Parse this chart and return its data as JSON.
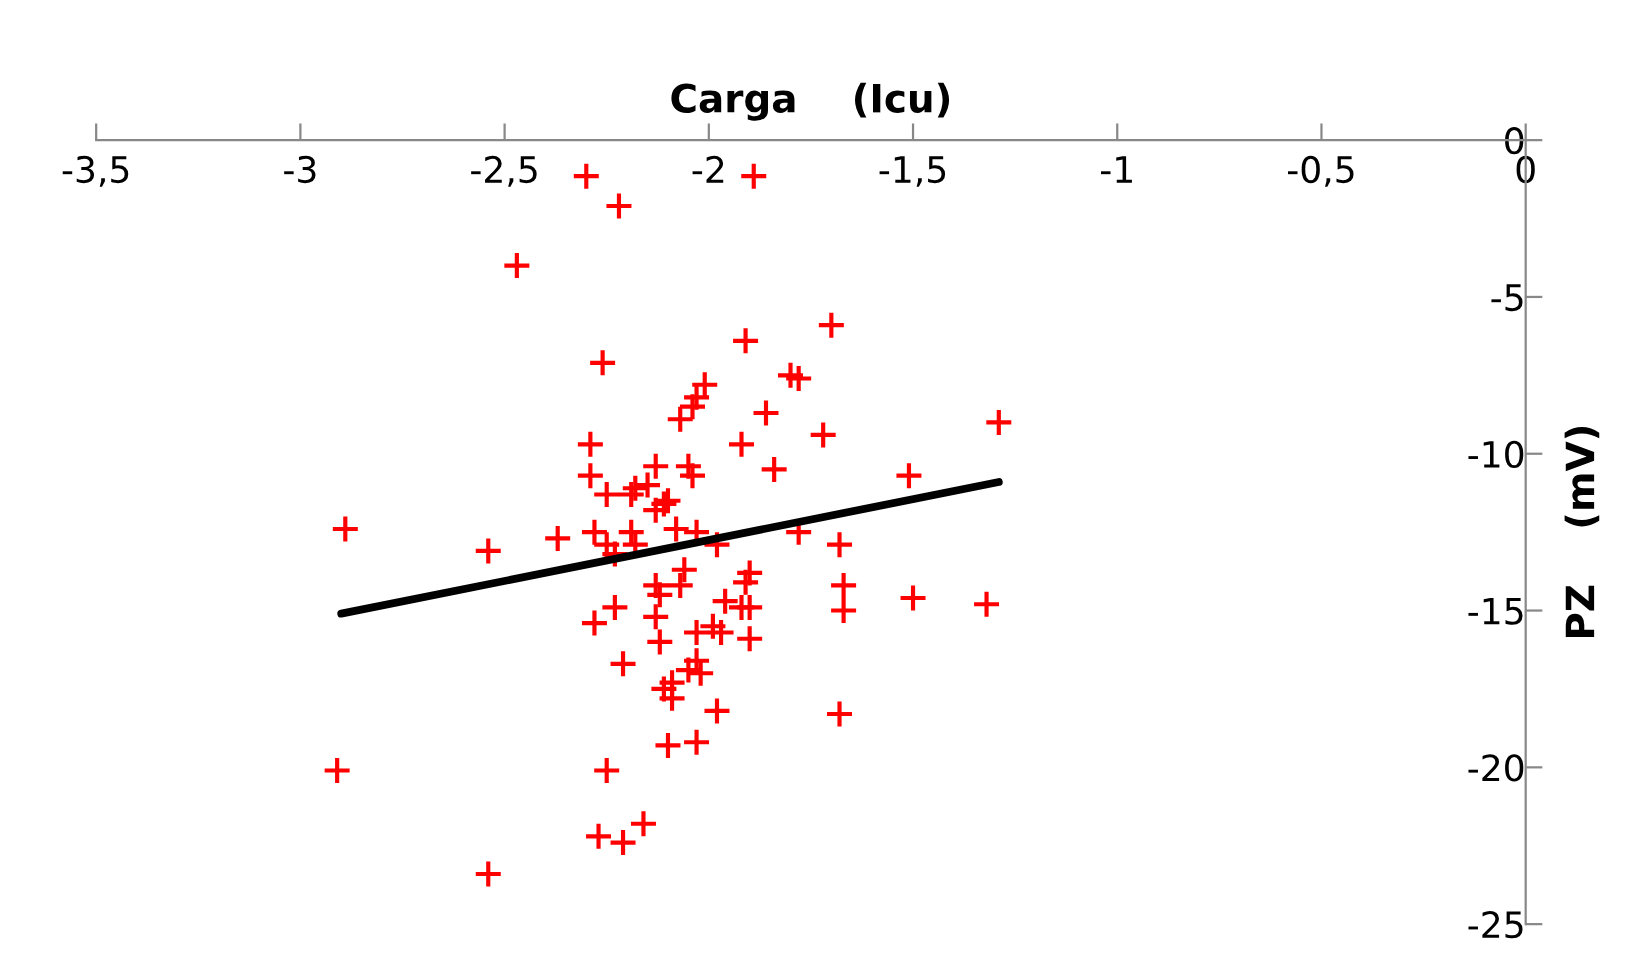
{
  "chart_data": {
    "type": "scatter",
    "xlabel": "Carga    (Icu)",
    "ylabel": "PZ    (mV)",
    "xlim": [
      -3.5,
      0
    ],
    "ylim": [
      -25,
      0
    ],
    "xticks": [
      {
        "value": -3.5,
        "label": "-3,5"
      },
      -3,
      {
        "value": -2.5,
        "label": "-2,5"
      },
      -2,
      {
        "value": -1.5,
        "label": "-1,5"
      },
      -1,
      {
        "value": -0.5,
        "label": "-0,5"
      },
      0
    ],
    "yticks": [
      0,
      -5,
      -10,
      -15,
      -20,
      -25
    ],
    "grid": false,
    "legend": false,
    "series": [
      {
        "marker": "cross",
        "color": "#ff0000",
        "x": [
          -2.3,
          -2.22,
          -1.89,
          -2.47,
          -1.7,
          -1.91,
          -2.26,
          -1.8,
          -1.78,
          -2.01,
          -2.03,
          -2.04,
          -1.86,
          -1.29,
          -2.07,
          -1.72,
          -1.92,
          -2.29,
          -1.84,
          -1.51,
          -2.29,
          -2.13,
          -2.05,
          -2.25,
          -2.19,
          -2.18,
          -2.15,
          -2.11,
          -2.1,
          -2.04,
          -2.89,
          -2.54,
          -2.37,
          -2.28,
          -2.25,
          -2.23,
          -2.19,
          -2.18,
          -2.13,
          -2.08,
          -2.03,
          -1.98,
          -1.78,
          -1.68,
          -2.06,
          -2.13,
          -2.12,
          -2.07,
          -1.9,
          -1.91,
          -1.96,
          -1.92,
          -1.9,
          -1.67,
          -1.67,
          -1.5,
          -1.32,
          -2.23,
          -2.28,
          -2.13,
          -2.12,
          -2.03,
          -1.99,
          -1.97,
          -1.9,
          -2.21,
          -2.03,
          -2.05,
          -2.02,
          -2.09,
          -2.11,
          -2.09,
          -1.98,
          -1.68,
          -2.1,
          -2.03,
          -2.91,
          -2.25,
          -2.27,
          -2.21,
          -2.16,
          -2.54
        ],
        "values": [
          -1.15,
          -2.1,
          -1.15,
          -4.0,
          -5.9,
          -6.4,
          -7.1,
          -7.5,
          -7.6,
          -7.8,
          -8.2,
          -8.5,
          -8.7,
          -9.0,
          -8.9,
          -9.4,
          -9.7,
          -9.7,
          -10.5,
          -10.7,
          -10.7,
          -10.4,
          -10.4,
          -11.3,
          -11.3,
          -11.1,
          -11.0,
          -11.6,
          -11.5,
          -10.7,
          -12.4,
          -13.1,
          -12.7,
          -12.5,
          -12.9,
          -13.2,
          -12.5,
          -12.9,
          -11.8,
          -12.4,
          -12.5,
          -12.9,
          -12.5,
          -12.9,
          -13.7,
          -14.2,
          -14.5,
          -14.2,
          -13.8,
          -14.1,
          -14.7,
          -14.9,
          -14.9,
          -14.2,
          -15.0,
          -14.6,
          -14.8,
          -14.9,
          -15.4,
          -15.2,
          -16.0,
          -15.7,
          -15.5,
          -15.7,
          -15.9,
          -16.7,
          -16.6,
          -16.9,
          -17.0,
          -17.3,
          -17.5,
          -17.8,
          -18.2,
          -18.3,
          -19.3,
          -19.2,
          -20.1,
          -20.1,
          -22.2,
          -22.4,
          -21.8,
          -23.4
        ]
      },
      {
        "type": "line",
        "color": "#000000",
        "x": [
          -2.9,
          -1.29
        ],
        "values": [
          -15.1,
          -10.9
        ]
      }
    ]
  }
}
